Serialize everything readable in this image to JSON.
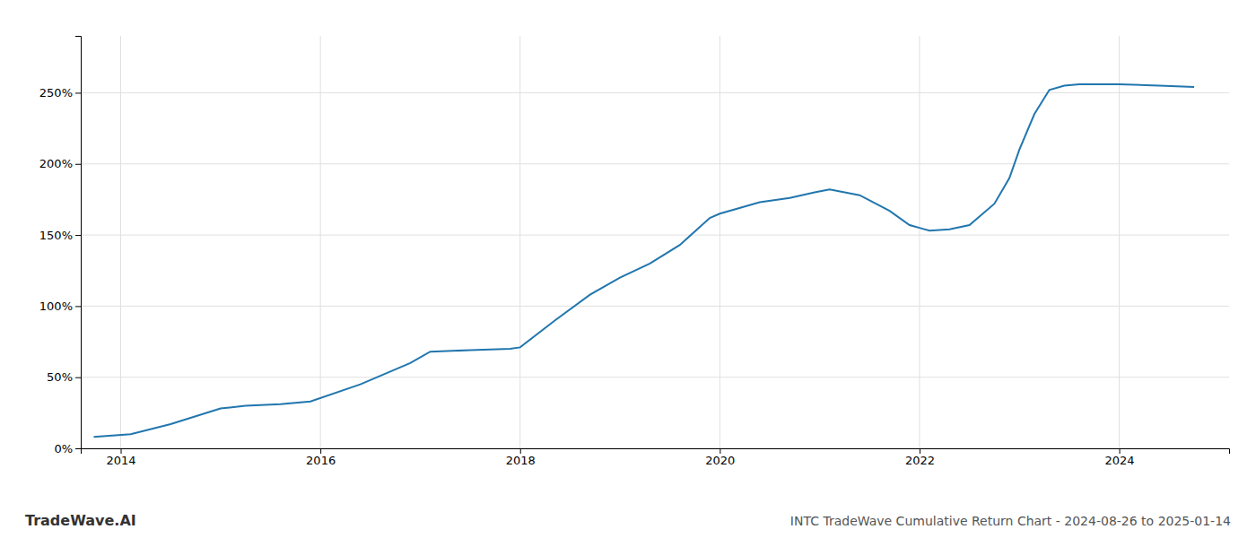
{
  "chart_data": {
    "type": "line",
    "title": "INTC TradeWave Cumulative Return Chart - 2024-08-26 to 2025-01-14",
    "annotations": [
      "TradeWave.AI"
    ],
    "x": [
      2013.73,
      2014.1,
      2014.5,
      2015.0,
      2015.25,
      2015.6,
      2015.9,
      2016.4,
      2016.9,
      2017.1,
      2017.5,
      2017.9,
      2018.0,
      2018.35,
      2018.7,
      2019.0,
      2019.3,
      2019.6,
      2019.9,
      2020.0,
      2020.15,
      2020.4,
      2020.7,
      2020.95,
      2021.1,
      2021.4,
      2021.7,
      2021.9,
      2022.0,
      2022.1,
      2022.3,
      2022.5,
      2022.75,
      2022.9,
      2023.0,
      2023.15,
      2023.3,
      2023.45,
      2023.6,
      2024.0,
      2024.4,
      2024.75
    ],
    "values": [
      8,
      10,
      17,
      28,
      30,
      31,
      33,
      45,
      60,
      68,
      69,
      70,
      71,
      90,
      108,
      120,
      130,
      143,
      162,
      165,
      168,
      173,
      176,
      180,
      182,
      178,
      167,
      157,
      155,
      153,
      154,
      157,
      172,
      190,
      210,
      235,
      252,
      255,
      256,
      256,
      255,
      254
    ],
    "color": "#2176ae",
    "xlim": [
      2013.6,
      2025.1
    ],
    "xticks": [
      2014,
      2016,
      2018,
      2020,
      2022,
      2024
    ],
    "ylim": [
      0,
      290
    ],
    "yticks": [
      {
        "value": 0,
        "label": "0%"
      },
      {
        "value": 50,
        "label": "50%"
      },
      {
        "value": 100,
        "label": "100%"
      },
      {
        "value": 150,
        "label": "150%"
      },
      {
        "value": 200,
        "label": "200%"
      },
      {
        "value": 250,
        "label": "250%"
      }
    ],
    "grid": true
  }
}
